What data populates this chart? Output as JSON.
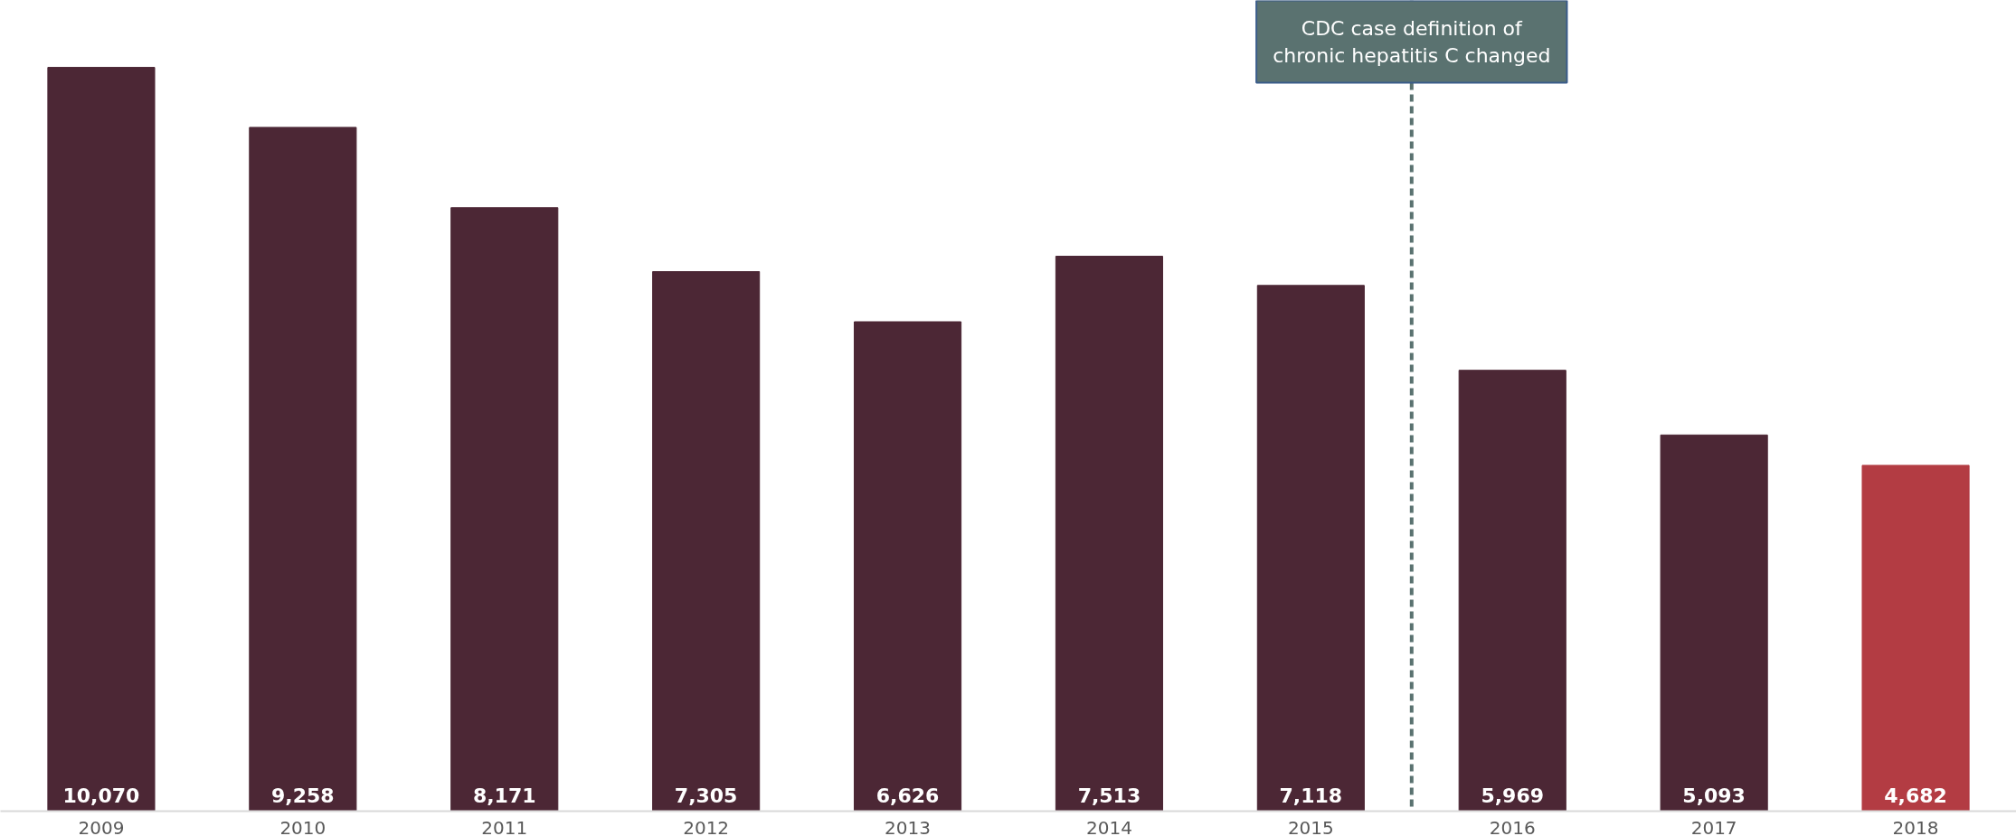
{
  "chart_data": {
    "type": "bar",
    "x": [
      2009,
      2010,
      2011,
      2012,
      2013,
      2014,
      2015,
      2016,
      2017,
      2018
    ],
    "values": [
      10070,
      9258,
      8171,
      7305,
      6626,
      7513,
      7118,
      5969,
      5093,
      4682
    ],
    "colors": [
      "#4c2735",
      "#4c2735",
      "#4c2735",
      "#4c2735",
      "#4c2735",
      "#4c2735",
      "#4c2735",
      "#4c2735",
      "#4c2735",
      "#b33c43"
    ],
    "xlim": [
      2008.5,
      2018.5
    ],
    "xticks": [
      2009,
      2010,
      2011,
      2012,
      2013,
      2014,
      2015,
      2016,
      2017,
      2018
    ],
    "value_labels": [
      "10,070",
      "9,258",
      "8,171",
      "7,305",
      "6,626",
      "7,513",
      "7,118",
      "5,969",
      "5,093",
      "4,682"
    ],
    "ref_lines": [
      {
        "axis": "x",
        "value": 2015.5,
        "label": "CDC case definition of\nchronic hepatitis C changed",
        "color": "#5a7270",
        "line_style": "dashed"
      }
    ]
  }
}
